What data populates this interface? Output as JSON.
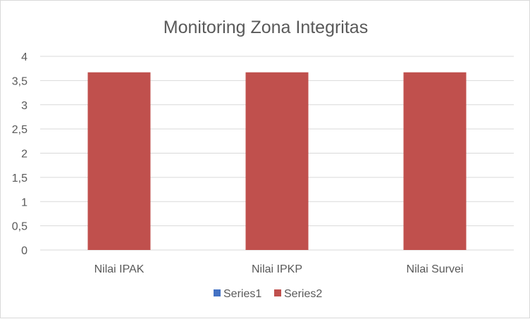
{
  "chart_data": {
    "type": "bar",
    "title": "Monitoring Zona Integritas",
    "xlabel": "",
    "ylabel": "",
    "categories": [
      "Nilai IPAK",
      "Nilai IPKP",
      "Nilai Survei"
    ],
    "series": [
      {
        "name": "Series1",
        "values": [
          0,
          0,
          0
        ],
        "color": "#4472c4"
      },
      {
        "name": "Series2",
        "values": [
          3.67,
          3.67,
          3.67
        ],
        "color": "#c0504d"
      }
    ],
    "ylim": [
      0,
      4
    ],
    "yticks": [
      0,
      0.5,
      1,
      1.5,
      2,
      2.5,
      3,
      3.5,
      4
    ],
    "ytick_labels": [
      "0",
      "0,5",
      "1",
      "1,5",
      "2",
      "2,5",
      "3",
      "3,5",
      "4"
    ],
    "grid": true,
    "legend": "bottom",
    "gridline_color": "#d9d9d9"
  }
}
